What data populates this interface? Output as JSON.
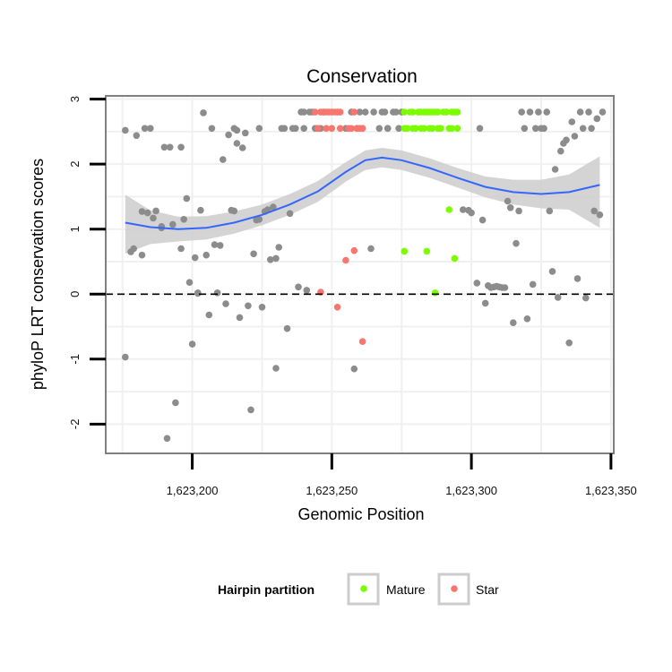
{
  "chart_data": {
    "type": "scatter",
    "title": "Conservation",
    "xlabel": "Genomic Position",
    "ylabel": "phyloP LRT conservation scores",
    "xlim": [
      1623169,
      1623351
    ],
    "ylim": [
      -2.45,
      3.05
    ],
    "x_ticks": [
      1623200,
      1623250,
      1623300,
      1623350
    ],
    "x_tick_labels": [
      "1,623,200",
      "1,623,250",
      "1,623,300",
      "1,623,350"
    ],
    "y_ticks": [
      -2,
      -1,
      0,
      1,
      2,
      3
    ],
    "y_tick_labels": [
      "-2",
      "-1",
      "0",
      "1",
      "2",
      "3"
    ],
    "reference_line": {
      "y": 0,
      "style": "dashed"
    },
    "legend": {
      "title": "Hairpin partition",
      "position": "bottom",
      "entries": [
        {
          "label": "Mature",
          "color": "#7cfc00"
        },
        {
          "label": "Star",
          "color": "#f8766d"
        }
      ]
    },
    "colors": {
      "other": "#8c8c8c",
      "mature": "#7cfc00",
      "star": "#f8766d",
      "smooth_line": "#3366ff",
      "ribbon": "#cccccc",
      "grid": "#f0f0f0",
      "panel_border": "#808080"
    },
    "smooth": {
      "x": [
        1623176,
        1623185,
        1623195,
        1623205,
        1623215,
        1623225,
        1623235,
        1623245,
        1623255,
        1623262,
        1623268,
        1623275,
        1623285,
        1623295,
        1623305,
        1623315,
        1623325,
        1623335,
        1623346
      ],
      "y": [
        1.1,
        1.03,
        1.0,
        1.02,
        1.1,
        1.22,
        1.38,
        1.58,
        1.88,
        2.06,
        2.1,
        2.06,
        1.94,
        1.79,
        1.65,
        1.57,
        1.54,
        1.57,
        1.68
      ],
      "lower": [
        0.62,
        0.77,
        0.81,
        0.84,
        0.93,
        1.06,
        1.22,
        1.42,
        1.73,
        1.91,
        1.95,
        1.91,
        1.79,
        1.64,
        1.49,
        1.38,
        1.32,
        1.3,
        1.02
      ],
      "upper": [
        1.53,
        1.29,
        1.19,
        1.2,
        1.27,
        1.38,
        1.54,
        1.74,
        2.03,
        2.21,
        2.25,
        2.21,
        2.09,
        1.94,
        1.81,
        1.76,
        1.76,
        1.84,
        2.12
      ]
    },
    "series": [
      {
        "name": "Other",
        "group": "other",
        "x": [
          1623176,
          1623176,
          1623178,
          1623179,
          1623180,
          1623182,
          1623182,
          1623183,
          1623184,
          1623185,
          1623186,
          1623187,
          1623189,
          1623189,
          1623190,
          1623191,
          1623192,
          1623193,
          1623194,
          1623196,
          1623196,
          1623197,
          1623198,
          1623199,
          1623200,
          1623201,
          1623202,
          1623202,
          1623203,
          1623204,
          1623205,
          1623206,
          1623207,
          1623208,
          1623209,
          1623210,
          1623211,
          1623212,
          1623213,
          1623214,
          1623215,
          1623215,
          1623216,
          1623216,
          1623217,
          1623218,
          1623219,
          1623220,
          1623221,
          1623222,
          1623223,
          1623224,
          1623224,
          1623225,
          1623226,
          1623227,
          1623228,
          1623229,
          1623230,
          1623230,
          1623231,
          1623232,
          1623233,
          1623234,
          1623235,
          1623236,
          1623237,
          1623238,
          1623239,
          1623240,
          1623240,
          1623241,
          1623242,
          1623243,
          1623244,
          1623245,
          1623246,
          1623247,
          1623255,
          1623257,
          1623258,
          1623259,
          1623260,
          1623261,
          1623262,
          1623264,
          1623265,
          1623267,
          1623268,
          1623269,
          1623270,
          1623270,
          1623272,
          1623273,
          1623274,
          1623275,
          1623297,
          1623299,
          1623300,
          1623302,
          1623303,
          1623304,
          1623305,
          1623306,
          1623307,
          1623308,
          1623309,
          1623310,
          1623311,
          1623312,
          1623313,
          1623314,
          1623315,
          1623316,
          1623317,
          1623318,
          1623319,
          1623320,
          1623321,
          1623322,
          1623323,
          1623324,
          1623325,
          1623326,
          1623327,
          1623328,
          1623329,
          1623330,
          1623331,
          1623332,
          1623333,
          1623334,
          1623335,
          1623336,
          1623337,
          1623338,
          1623339,
          1623340,
          1623341,
          1623342,
          1623343,
          1623344,
          1623345,
          1623346,
          1623347
        ],
        "y": [
          -0.97,
          2.52,
          0.65,
          0.7,
          2.44,
          1.27,
          0.6,
          2.55,
          1.25,
          2.55,
          1.17,
          1.28,
          1.04,
          1.02,
          2.26,
          -2.22,
          2.26,
          1.07,
          -1.67,
          2.26,
          0.7,
          1.15,
          1.47,
          0.18,
          -0.77,
          0.56,
          0.02,
          0.01,
          1.29,
          2.79,
          0.6,
          -0.32,
          2.55,
          0.76,
          0.02,
          0.75,
          2.07,
          -0.15,
          2.45,
          1.29,
          1.28,
          2.55,
          2.52,
          2.32,
          -0.36,
          2.25,
          2.48,
          -0.18,
          -1.78,
          0.62,
          1.14,
          1.15,
          2.55,
          -0.2,
          1.27,
          1.3,
          0.53,
          1.34,
          -1.14,
          0.55,
          0.72,
          2.55,
          2.55,
          -0.53,
          1.24,
          2.55,
          2.55,
          0.11,
          2.8,
          2.8,
          2.55,
          0.06,
          2.8,
          2.8,
          2.55,
          2.55,
          2.55,
          2.8,
          2.55,
          2.8,
          -1.15,
          2.55,
          2.8,
          2.55,
          2.8,
          0.7,
          2.8,
          2.55,
          2.8,
          2.8,
          2.55,
          2.55,
          2.8,
          2.8,
          2.55,
          2.8,
          1.3,
          1.29,
          1.25,
          0.17,
          2.55,
          1.14,
          -0.14,
          0.13,
          0.1,
          0.11,
          0.12,
          0.11,
          0.1,
          0.1,
          1.43,
          1.33,
          -0.44,
          0.78,
          1.28,
          2.8,
          2.55,
          -0.38,
          2.8,
          0.15,
          2.55,
          2.8,
          2.55,
          2.55,
          2.8,
          1.28,
          0.35,
          1.92,
          -0.05,
          2.2,
          2.32,
          2.37,
          -0.75,
          2.65,
          2.43,
          0.24,
          2.8,
          2.55,
          -0.06,
          2.8,
          2.55,
          1.28,
          2.7,
          1.22,
          2.8
        ],
        "color_key": "other"
      },
      {
        "name": "Mature",
        "group": "mature",
        "x": [
          1623276,
          1623278,
          1623279,
          1623281,
          1623282,
          1623283,
          1623284,
          1623285,
          1623286,
          1623287,
          1623288,
          1623290,
          1623291,
          1623293,
          1623294,
          1623295,
          1623277,
          1623280,
          1623283,
          1623286,
          1623289,
          1623292,
          1623295,
          1623276,
          1623284,
          1623292,
          1623280,
          1623294,
          1623287,
          1623288,
          1623276,
          1623279,
          1623282,
          1623285,
          1623289,
          1623293
        ],
        "y": [
          2.8,
          2.8,
          2.8,
          2.8,
          2.8,
          2.8,
          2.8,
          2.8,
          2.8,
          2.8,
          2.8,
          2.8,
          2.8,
          2.8,
          2.8,
          2.8,
          2.55,
          2.55,
          2.55,
          2.55,
          2.55,
          2.55,
          2.55,
          0.66,
          0.66,
          1.3,
          2.55,
          0.55,
          0.02,
          2.55,
          2.55,
          2.55,
          2.55,
          2.55,
          2.55,
          2.55
        ],
        "color_key": "mature"
      },
      {
        "name": "Star",
        "group": "star",
        "x": [
          1623244,
          1623246,
          1623247,
          1623248,
          1623249,
          1623250,
          1623251,
          1623252,
          1623253,
          1623258,
          1623245,
          1623248,
          1623250,
          1623253,
          1623256,
          1623257,
          1623259,
          1623260,
          1623261,
          1623246,
          1623252,
          1623255,
          1623258,
          1623261
        ],
        "y": [
          2.8,
          2.8,
          2.8,
          2.8,
          2.8,
          2.8,
          2.8,
          2.8,
          2.8,
          2.8,
          2.55,
          2.55,
          2.55,
          2.55,
          2.55,
          2.55,
          2.55,
          2.55,
          2.55,
          0.03,
          -0.2,
          0.52,
          0.67,
          -0.73
        ],
        "color_key": "star"
      }
    ]
  }
}
